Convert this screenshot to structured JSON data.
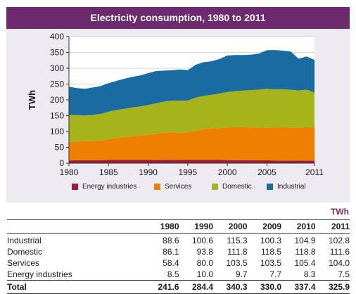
{
  "chart_data": {
    "type": "area",
    "stacked": true,
    "title": "Electricity consumption, 1980 to 2011",
    "ylabel": "TWh",
    "xlabel": "",
    "ylim": [
      0,
      400
    ],
    "yticks": [
      0,
      50,
      100,
      150,
      200,
      250,
      300,
      350,
      400
    ],
    "xlim": [
      1980,
      2011
    ],
    "xticks": [
      1980,
      1985,
      1990,
      1995,
      2000,
      2005,
      2011
    ],
    "x": [
      1980,
      1981,
      1982,
      1983,
      1984,
      1985,
      1986,
      1987,
      1988,
      1989,
      1990,
      1991,
      1992,
      1993,
      1994,
      1995,
      1996,
      1997,
      1998,
      1999,
      2000,
      2001,
      2002,
      2003,
      2004,
      2005,
      2006,
      2007,
      2008,
      2009,
      2010,
      2011
    ],
    "series": [
      {
        "name": "Energy industries",
        "color": "#9b1b3a",
        "values": [
          8.5,
          9,
          9,
          9,
          9.5,
          10,
          10,
          10,
          10,
          10,
          10,
          10,
          10.5,
          10.5,
          10,
          10,
          10,
          10,
          10,
          10,
          9.7,
          9.5,
          9.5,
          9,
          9,
          9,
          8.5,
          8.5,
          8.5,
          7.7,
          8.3,
          7.5
        ]
      },
      {
        "name": "Services",
        "color": "#ee7f00",
        "values": [
          58.4,
          59,
          60,
          61,
          62,
          66,
          69,
          72,
          75,
          77,
          80,
          83,
          86,
          88,
          86,
          88,
          93,
          97,
          99,
          101,
          103.5,
          104,
          104,
          104,
          103.5,
          104,
          104,
          105,
          104.5,
          103.5,
          105.4,
          104
        ]
      },
      {
        "name": "Domestic",
        "color": "#a6b31a",
        "values": [
          86.1,
          84,
          82,
          83,
          84,
          87,
          89,
          90,
          91,
          92,
          93.8,
          96,
          98,
          99,
          101,
          100,
          104,
          106,
          107,
          109,
          111.8,
          114,
          116,
          118,
          120,
          122,
          121,
          120,
          119,
          118.5,
          118.8,
          111.6
        ]
      },
      {
        "name": "Industrial",
        "color": "#1b6ba3",
        "values": [
          88.6,
          85,
          84,
          86,
          88,
          90,
          92,
          95,
          97,
          98,
          100.6,
          102,
          98,
          96,
          99,
          96,
          104,
          106,
          106,
          109,
          115.3,
          114,
          112,
          112,
          114,
          122,
          124,
          122,
          121,
          100.3,
          104.9,
          102.8
        ]
      }
    ],
    "legend_position": "bottom"
  },
  "table": {
    "unit": "TWh",
    "columns": [
      "1980",
      "1990",
      "2000",
      "2009",
      "2010",
      "2011"
    ],
    "rows": [
      {
        "label": "Industrial",
        "values": [
          "88.6",
          "100.6",
          "115.3",
          "100.3",
          "104.9",
          "102.8"
        ]
      },
      {
        "label": "Domestic",
        "values": [
          "86.1",
          "93.8",
          "111.8",
          "118.5",
          "118.8",
          "111.6"
        ]
      },
      {
        "label": "Services",
        "values": [
          "58.4",
          "80.0",
          "103.5",
          "103.5",
          "105.4",
          "104.0"
        ]
      },
      {
        "label": "Energy industries",
        "values": [
          "8.5",
          "10.0",
          "9.7",
          "7.7",
          "8.3",
          "7.5"
        ]
      }
    ],
    "total": {
      "label": "Total",
      "values": [
        "241.6",
        "284.4",
        "340.3",
        "330.0",
        "337.4",
        "325.9"
      ]
    }
  }
}
